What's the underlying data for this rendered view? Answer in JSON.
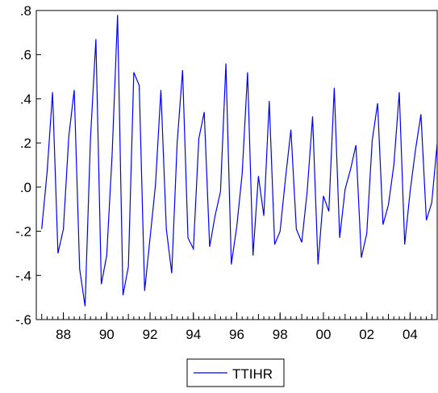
{
  "chart_data": {
    "type": "line",
    "title": "",
    "xlabel": "",
    "ylabel": "",
    "x_range": [
      1986.75,
      2005.25
    ],
    "ylim": [
      -0.6,
      0.8
    ],
    "y_ticks": [
      -0.6,
      -0.4,
      -0.2,
      0.0,
      0.2,
      0.4,
      0.6,
      0.8
    ],
    "y_tick_labels": [
      "-.6",
      "-.4",
      "-.2",
      ".0",
      ".2",
      ".4",
      ".6",
      ".8"
    ],
    "x_ticks": [
      1988,
      1990,
      1992,
      1994,
      1996,
      1998,
      2000,
      2002,
      2004
    ],
    "x_tick_labels": [
      "88",
      "90",
      "92",
      "94",
      "96",
      "98",
      "00",
      "02",
      "04"
    ],
    "grid": false,
    "legend_position": "bottom-center",
    "series": [
      {
        "name": "TTIHR",
        "color": "#0000ff",
        "x": [
          1987.0,
          1987.25,
          1987.5,
          1987.75,
          1988.0,
          1988.25,
          1988.5,
          1988.75,
          1989.0,
          1989.25,
          1989.5,
          1989.75,
          1990.0,
          1990.25,
          1990.5,
          1990.75,
          1991.0,
          1991.25,
          1991.5,
          1991.75,
          1992.0,
          1992.25,
          1992.5,
          1992.75,
          1993.0,
          1993.25,
          1993.5,
          1993.75,
          1994.0,
          1994.25,
          1994.5,
          1994.75,
          1995.0,
          1995.25,
          1995.5,
          1995.75,
          1996.0,
          1996.25,
          1996.5,
          1996.75,
          1997.0,
          1997.25,
          1997.5,
          1997.75,
          1998.0,
          1998.25,
          1998.5,
          1998.75,
          1999.0,
          1999.25,
          1999.5,
          1999.75,
          2000.0,
          2000.25,
          2000.5,
          2000.75,
          2001.0,
          2001.25,
          2001.5,
          2001.75,
          2002.0,
          2002.25,
          2002.5,
          2002.75,
          2003.0,
          2003.25,
          2003.5,
          2003.75,
          2004.0,
          2004.25,
          2004.5,
          2004.75,
          2005.0,
          2005.25
        ],
        "values": [
          -0.19,
          0.07,
          0.43,
          -0.3,
          -0.19,
          0.23,
          0.44,
          -0.37,
          -0.54,
          0.22,
          0.67,
          -0.44,
          -0.31,
          0.15,
          0.78,
          -0.49,
          -0.36,
          0.52,
          0.46,
          -0.47,
          -0.23,
          0.01,
          0.44,
          -0.19,
          -0.39,
          0.2,
          0.53,
          -0.23,
          -0.28,
          0.22,
          0.34,
          -0.27,
          -0.13,
          -0.02,
          0.56,
          -0.35,
          -0.18,
          0.06,
          0.52,
          -0.31,
          0.05,
          -0.13,
          0.39,
          -0.26,
          -0.2,
          0.04,
          0.26,
          -0.19,
          -0.25,
          -0.02,
          0.32,
          -0.35,
          -0.04,
          -0.11,
          0.45,
          -0.23,
          -0.01,
          0.08,
          0.19,
          -0.32,
          -0.21,
          0.21,
          0.38,
          -0.17,
          -0.08,
          0.1,
          0.43,
          -0.26,
          -0.02,
          0.17,
          0.33,
          -0.15,
          -0.07,
          0.2
        ]
      }
    ]
  }
}
